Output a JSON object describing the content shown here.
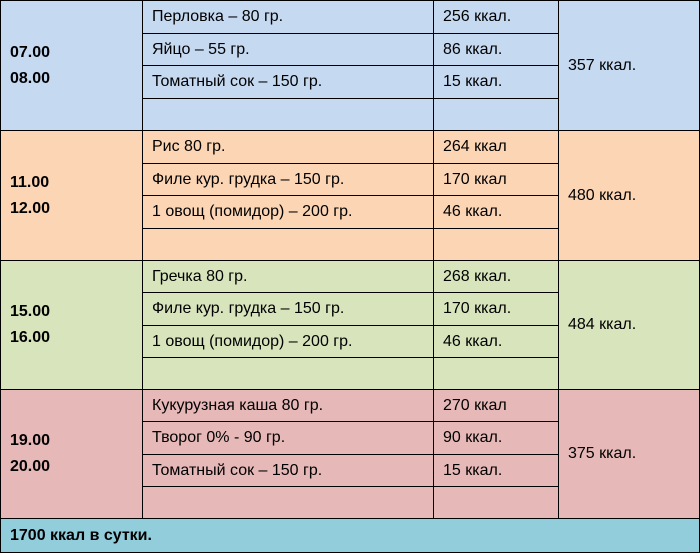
{
  "meals": [
    {
      "time": [
        "07.00",
        "08.00"
      ],
      "items": [
        {
          "food": "Перловка – 80 гр.",
          "kcal": "256 ккал."
        },
        {
          "food": "Яйцо – 55 гр.",
          "kcal": "86 ккал."
        },
        {
          "food": "Томатный сок – 150 гр.",
          "kcal": "15 ккал."
        }
      ],
      "total": "357 ккал."
    },
    {
      "time": [
        "11.00",
        "12.00"
      ],
      "items": [
        {
          "food": "Рис 80 гр.",
          "kcal": "264 ккал"
        },
        {
          "food": "Филе кур. грудка – 150 гр.",
          "kcal": "170 ккал"
        },
        {
          "food": "1 овощ (помидор) – 200 гр.",
          "kcal": "46 ккал."
        }
      ],
      "total": "480 ккал."
    },
    {
      "time": [
        "15.00",
        "16.00"
      ],
      "items": [
        {
          "food": "Гречка 80 гр.",
          "kcal": "268 ккал."
        },
        {
          "food": "Филе кур. грудка – 150 гр.",
          "kcal": "170 ккал."
        },
        {
          "food": "1 овощ (помидор) – 200 гр.",
          "kcal": "46 ккал."
        }
      ],
      "total": "484 ккал."
    },
    {
      "time": [
        "19.00",
        "20.00"
      ],
      "items": [
        {
          "food": "Кукурузная каша 80 гр.",
          "kcal": "270 ккал"
        },
        {
          "food": "Творог 0% - 90 гр.",
          "kcal": "90 ккал."
        },
        {
          "food": "Томатный сок – 150 гр.",
          "kcal": "15 ккал."
        }
      ],
      "total": "375 ккал."
    }
  ],
  "footer": "1700 ккал в сутки."
}
